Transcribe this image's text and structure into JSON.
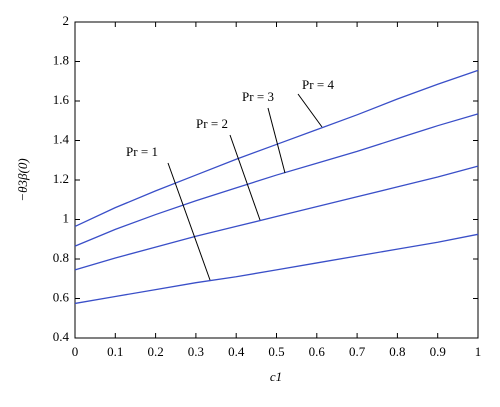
{
  "chart_data": {
    "type": "line",
    "x_label": "c1",
    "y_label": "−θ3β(0)",
    "x": [
      0,
      0.1,
      0.2,
      0.3,
      0.4,
      0.5,
      0.6,
      0.7,
      0.8,
      0.9,
      1
    ],
    "series": [
      {
        "name": "Pr = 1",
        "color": "#3a4fc8",
        "values": [
          0.575,
          0.61,
          0.645,
          0.68,
          0.71,
          0.745,
          0.78,
          0.815,
          0.85,
          0.885,
          0.925
        ]
      },
      {
        "name": "Pr = 2",
        "color": "#3a4fc8",
        "values": [
          0.745,
          0.805,
          0.86,
          0.915,
          0.965,
          1.015,
          1.065,
          1.115,
          1.165,
          1.215,
          1.27
        ]
      },
      {
        "name": "Pr = 3",
        "color": "#3a4fc8",
        "values": [
          0.865,
          0.95,
          1.025,
          1.095,
          1.16,
          1.225,
          1.285,
          1.345,
          1.41,
          1.475,
          1.535
        ]
      },
      {
        "name": "Pr = 4",
        "color": "#3a4fc8",
        "values": [
          0.965,
          1.06,
          1.145,
          1.225,
          1.305,
          1.38,
          1.455,
          1.53,
          1.61,
          1.685,
          1.755
        ]
      }
    ],
    "xlim": [
      0,
      1
    ],
    "xticks": [
      0,
      0.1,
      0.2,
      0.3,
      0.4,
      0.5,
      0.6,
      0.7,
      0.8,
      0.9,
      1
    ],
    "ylim": [
      0.4,
      2
    ],
    "yticks": [
      0.4,
      0.6,
      0.8,
      1,
      1.2,
      1.4,
      1.6,
      1.8,
      2
    ],
    "grid": false
  }
}
